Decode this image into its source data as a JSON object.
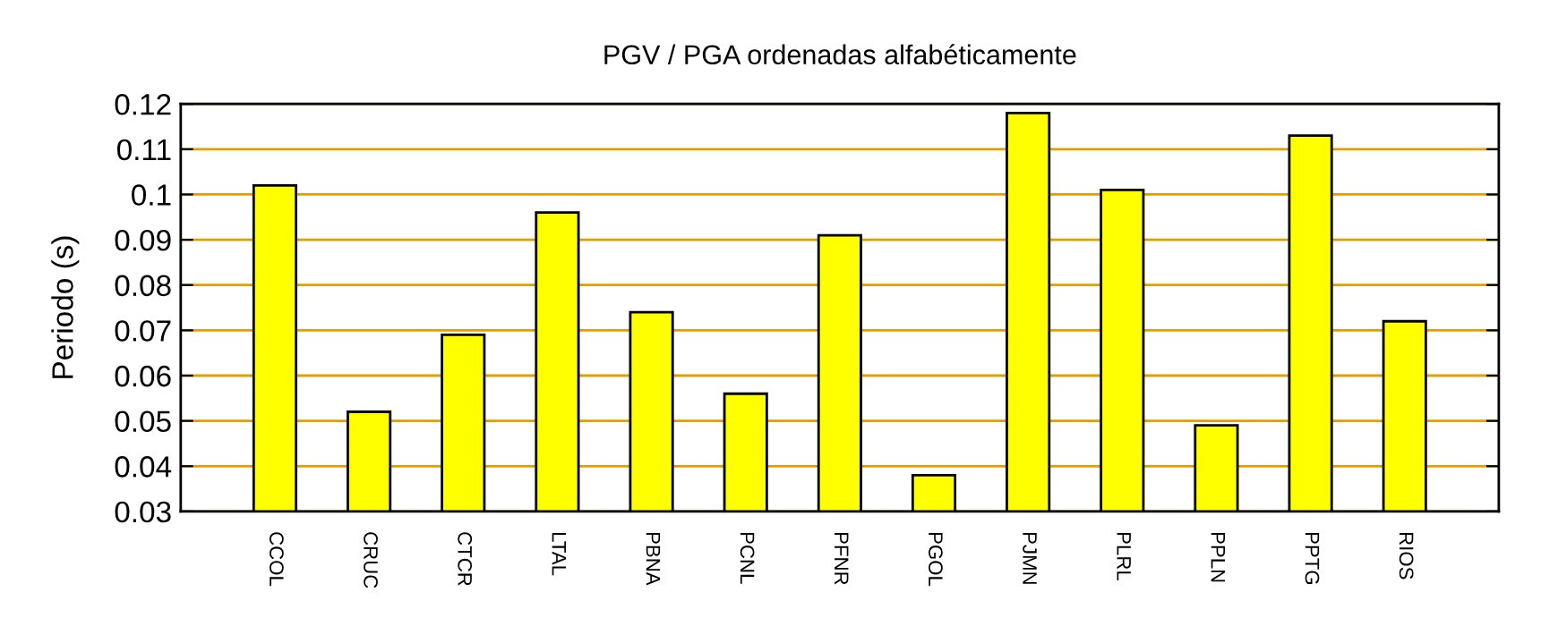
{
  "chart_data": {
    "type": "bar",
    "title": "PGV / PGA ordenadas alfabéticamente",
    "ylabel": "Periodo (s)",
    "categories": [
      "CCOL",
      "CRUC",
      "CTCR",
      "LTAL",
      "PBNA",
      "PCNL",
      "PFNR",
      "PGOL",
      "PJMN",
      "PLRL",
      "PPLN",
      "PPTG",
      "RIOS"
    ],
    "values": [
      0.102,
      0.052,
      0.069,
      0.096,
      0.074,
      0.056,
      0.091,
      0.038,
      0.118,
      0.101,
      0.049,
      0.113,
      0.072
    ],
    "color": "#ffff00",
    "ylim": [
      0.03,
      0.12
    ],
    "yticks": [
      0.03,
      0.04,
      0.05,
      0.06,
      0.07,
      0.08,
      0.09,
      0.1,
      0.11,
      0.12
    ],
    "grid": "y"
  }
}
